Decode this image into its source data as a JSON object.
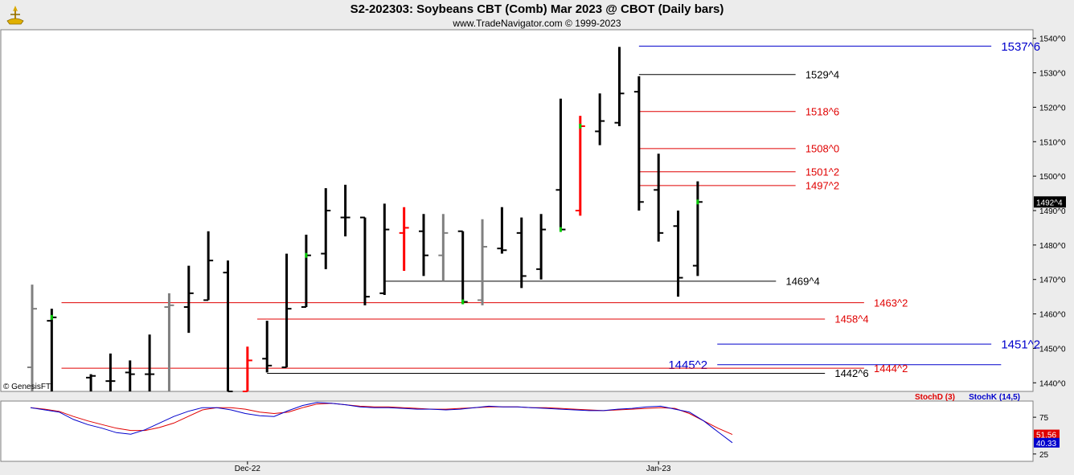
{
  "header": {
    "title": "S2-202303:  Soybeans CBT (Comb) Mar 2023 @ CBOT  (Daily bars)",
    "subtitle": "www.TradeNavigator.com © 1999-2023"
  },
  "watermark": "© GenesisFT",
  "colors": {
    "background": "#ffffff",
    "panel_bg": "#ececec",
    "bar_up": "#000000",
    "bar_gray": "#808080",
    "bar_red": "#ff0000",
    "close_green": "#00cc00",
    "level_red": "#e00000",
    "level_blue": "#0000cc",
    "level_black": "#000000",
    "stoch_d": "#e00000",
    "stoch_k": "#0000cc"
  },
  "chart_data": {
    "type": "ohlc",
    "title": "S2-202303:  Soybeans CBT (Comb) Mar 2023 @ CBOT  (Daily bars)",
    "price_axis": {
      "ticks": [
        "1540^0",
        "1530^0",
        "1520^0",
        "1510^0",
        "1500^0",
        "1490^0",
        "1480^0",
        "1470^0",
        "1460^0",
        "1450^0",
        "1440^0"
      ],
      "tick_values": [
        1540,
        1530,
        1520,
        1510,
        1500,
        1490,
        1480,
        1470,
        1460,
        1450,
        1440
      ],
      "ylim": [
        1437.5,
        1542.5
      ]
    },
    "last_price_label": "1492^4",
    "last_price_value": 1492.5,
    "x_labels": [
      {
        "label": "Dec-22",
        "bar": 11
      },
      {
        "label": "Jan-23",
        "bar": 32
      }
    ],
    "bars": [
      {
        "o": 1444.5,
        "h": 1468.5,
        "l": 1437.5,
        "c": 1461.5,
        "color": "gray"
      },
      {
        "o": 1458.0,
        "h": 1461.5,
        "l": 1437.5,
        "c": 1459.0,
        "color": "black",
        "close_mark": "green"
      },
      {
        "o": null,
        "h": null,
        "l": null,
        "c": null,
        "color": "none"
      },
      {
        "o": 1441.5,
        "h": 1442.5,
        "l": 1437.5,
        "c": 1442.0,
        "color": "black"
      },
      {
        "o": 1440.5,
        "h": 1448.5,
        "l": 1437.5,
        "c": 1440.5,
        "color": "black"
      },
      {
        "o": 1443.0,
        "h": 1446.5,
        "l": 1437.5,
        "c": 1442.5,
        "color": "black"
      },
      {
        "o": 1442.5,
        "h": 1454.0,
        "l": 1437.5,
        "c": 1442.5,
        "color": "black"
      },
      {
        "o": 1462.0,
        "h": 1466.0,
        "l": 1437.5,
        "c": 1462.5,
        "color": "gray"
      },
      {
        "o": 1462.0,
        "h": 1474.0,
        "l": 1454.5,
        "c": 1466.0,
        "color": "black"
      },
      {
        "o": 1464.0,
        "h": 1484.0,
        "l": 1464.0,
        "c": 1475.5,
        "color": "black"
      },
      {
        "o": 1472.0,
        "h": 1475.5,
        "l": 1437.5,
        "c": 1437.5,
        "color": "black"
      },
      {
        "o": 1437.5,
        "h": 1450.5,
        "l": 1437.5,
        "c": 1446.5,
        "color": "red"
      },
      {
        "o": 1447.0,
        "h": 1458.0,
        "l": 1443.0,
        "c": 1445.0,
        "color": "black"
      },
      {
        "o": 1444.5,
        "h": 1477.5,
        "l": 1444.5,
        "c": 1461.5,
        "color": "black"
      },
      {
        "o": 1462.0,
        "h": 1483.0,
        "l": 1462.0,
        "c": 1477.0,
        "color": "black",
        "close_mark": "green"
      },
      {
        "o": 1477.5,
        "h": 1496.5,
        "l": 1473.0,
        "c": 1490.0,
        "color": "black"
      },
      {
        "o": 1488.0,
        "h": 1497.5,
        "l": 1482.5,
        "c": 1488.0,
        "color": "black"
      },
      {
        "o": 1488.0,
        "h": 1488.0,
        "l": 1462.5,
        "c": 1465.0,
        "color": "black"
      },
      {
        "o": 1466.0,
        "h": 1492.0,
        "l": 1465.5,
        "c": 1484.5,
        "color": "black"
      },
      {
        "o": 1483.5,
        "h": 1491.0,
        "l": 1472.5,
        "c": 1485.0,
        "color": "red"
      },
      {
        "o": 1484.0,
        "h": 1489.0,
        "l": 1471.0,
        "c": 1477.0,
        "color": "black"
      },
      {
        "o": 1477.0,
        "h": 1489.0,
        "l": 1469.5,
        "c": 1483.5,
        "color": "gray"
      },
      {
        "o": 1484.0,
        "h": 1484.0,
        "l": 1463.0,
        "c": 1463.5,
        "color": "black",
        "close_mark": "green"
      },
      {
        "o": 1464.0,
        "h": 1487.5,
        "l": 1462.5,
        "c": 1479.5,
        "color": "gray"
      },
      {
        "o": 1479.0,
        "h": 1491.0,
        "l": 1477.5,
        "c": 1478.5,
        "color": "black"
      },
      {
        "o": 1483.5,
        "h": 1488.0,
        "l": 1467.5,
        "c": 1471.0,
        "color": "black"
      },
      {
        "o": 1473.0,
        "h": 1489.0,
        "l": 1470.0,
        "c": 1484.5,
        "color": "black"
      },
      {
        "o": 1496.0,
        "h": 1522.5,
        "l": 1484.5,
        "c": 1484.5,
        "color": "black",
        "close_mark": "green"
      },
      {
        "o": 1490.0,
        "h": 1517.5,
        "l": 1488.5,
        "c": 1514.5,
        "color": "red",
        "close_mark": "green"
      },
      {
        "o": 1513.0,
        "h": 1524.0,
        "l": 1509.0,
        "c": 1516.0,
        "color": "black"
      },
      {
        "o": 1515.5,
        "h": 1537.5,
        "l": 1514.5,
        "c": 1524.0,
        "color": "black"
      },
      {
        "o": 1524.5,
        "h": 1529.0,
        "l": 1490.0,
        "c": 1492.5,
        "color": "black"
      },
      {
        "o": 1496.0,
        "h": 1506.5,
        "l": 1481.0,
        "c": 1483.5,
        "color": "black"
      },
      {
        "o": 1485.5,
        "h": 1490.0,
        "l": 1465.0,
        "c": 1470.5,
        "color": "black"
      },
      {
        "o": 1474.0,
        "h": 1498.5,
        "l": 1471.0,
        "c": 1492.5,
        "color": "black",
        "close_mark": "green"
      }
    ],
    "levels": [
      {
        "label": "1537^6",
        "value": 1537.75,
        "color": "blue",
        "x_from_bar": 31,
        "x_to_bar": 49,
        "label_bar": 49.5,
        "font": 15
      },
      {
        "label": "1529^4",
        "value": 1529.5,
        "color": "black",
        "x_from_bar": 31,
        "x_to_bar": 39,
        "label_bar": 39.5,
        "font": 13
      },
      {
        "label": "1518^6",
        "value": 1518.75,
        "color": "red",
        "x_from_bar": 31,
        "x_to_bar": 39,
        "label_bar": 39.5,
        "font": 13
      },
      {
        "label": "1508^0",
        "value": 1508.0,
        "color": "red",
        "x_from_bar": 31,
        "x_to_bar": 39,
        "label_bar": 39.5,
        "font": 13
      },
      {
        "label": "1501^2",
        "value": 1501.25,
        "color": "red",
        "x_from_bar": 31,
        "x_to_bar": 39,
        "label_bar": 39.5,
        "font": 13
      },
      {
        "label": "1497^2",
        "value": 1497.25,
        "color": "red",
        "x_from_bar": 31,
        "x_to_bar": 39,
        "label_bar": 39.5,
        "font": 13
      },
      {
        "label": "1469^4",
        "value": 1469.5,
        "color": "black",
        "x_from_bar": 18,
        "x_to_bar": 38,
        "label_bar": 38.5,
        "font": 13
      },
      {
        "label": "1463^2",
        "value": 1463.25,
        "color": "red",
        "x_from_bar": 1.5,
        "x_to_bar": 42.5,
        "label_bar": 43,
        "font": 13
      },
      {
        "label": "1458^4",
        "value": 1458.5,
        "color": "red",
        "x_from_bar": 11.5,
        "x_to_bar": 40.5,
        "label_bar": 41,
        "font": 13
      },
      {
        "label": "1451^2",
        "value": 1451.25,
        "color": "blue",
        "x_from_bar": 35,
        "x_to_bar": 49,
        "label_bar": 49.5,
        "font": 15
      },
      {
        "label": "1445^2",
        "value": 1445.25,
        "color": "blue",
        "x_from_bar": 35,
        "x_to_bar": 49.5,
        "label_bar": 34.5,
        "font": 15,
        "anchor": "end"
      },
      {
        "label": "1444^2",
        "value": 1444.25,
        "color": "red",
        "x_from_bar": 1.5,
        "x_to_bar": 42.5,
        "label_bar": 43,
        "font": 13
      },
      {
        "label": "1442^6",
        "value": 1442.75,
        "color": "black",
        "x_from_bar": 12,
        "x_to_bar": 40.5,
        "label_bar": 41,
        "font": 13
      }
    ],
    "stochastic": {
      "legend_d": "StochD (3)",
      "legend_k": "StochK (14,5)",
      "tick_labels": [
        "75",
        "25"
      ],
      "tick_values": [
        75,
        25
      ],
      "ylim": [
        15,
        97
      ],
      "last_d_label": "51.56",
      "last_d": 51.56,
      "last_k_label": "40.33",
      "last_k": 40.33,
      "d_values": [
        88,
        86,
        83,
        76,
        70,
        65,
        60,
        57,
        57,
        61,
        67,
        76,
        85,
        88,
        88,
        86,
        82,
        80,
        82,
        88,
        93,
        94,
        92,
        90,
        89,
        89,
        88,
        87,
        86,
        86,
        87,
        88,
        89,
        89,
        89,
        88,
        88,
        87,
        86,
        85,
        84,
        85,
        86,
        87,
        88,
        87,
        80,
        70,
        60,
        51.56
      ],
      "k_values": [
        88,
        85,
        82,
        72,
        65,
        60,
        54,
        52,
        58,
        67,
        76,
        83,
        88,
        88,
        85,
        80,
        77,
        76,
        84,
        91,
        95,
        94,
        92,
        89,
        88,
        88,
        87,
        86,
        86,
        85,
        86,
        88,
        90,
        89,
        89,
        88,
        87,
        86,
        85,
        84,
        84,
        86,
        87,
        89,
        90,
        86,
        82,
        70,
        55,
        40.33
      ]
    }
  }
}
